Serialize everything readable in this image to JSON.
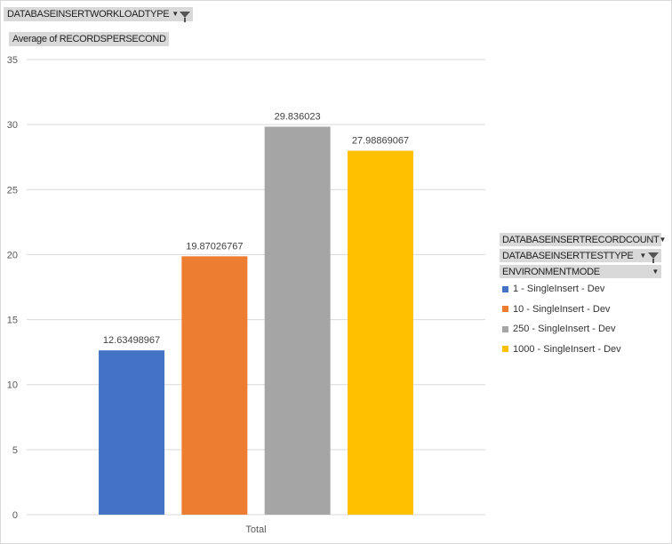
{
  "filters": {
    "report_filter_label": "DATABASEINSERTWORKLOADTYPE",
    "values_label": "Average of RECORDSPERSECOND"
  },
  "legend_fields": [
    {
      "label": "DATABASEINSERTRECORDCOUNT",
      "icon": "dropdown-arrow-icon"
    },
    {
      "label": "DATABASEINSERTTESTTYPE",
      "icon": "filter-dropdown-icon"
    },
    {
      "label": "ENVIRONMENTMODE",
      "icon": "dropdown-arrow-icon"
    }
  ],
  "chart_data": {
    "type": "bar",
    "categories": [
      "Total"
    ],
    "series": [
      {
        "name": "1 - SingleInsert - Dev",
        "values": [
          12.63498967
        ],
        "label": "12.63498967",
        "color": "#4472c4"
      },
      {
        "name": "10 - SingleInsert - Dev",
        "values": [
          19.87026767
        ],
        "label": "19.87026767",
        "color": "#ed7d31"
      },
      {
        "name": "250 - SingleInsert - Dev",
        "values": [
          29.836023
        ],
        "label": "29.836023",
        "color": "#a5a5a5"
      },
      {
        "name": "1000 - SingleInsert - Dev",
        "values": [
          27.98869067
        ],
        "label": "27.98869067",
        "color": "#ffc000"
      }
    ],
    "ylim": [
      0,
      35
    ],
    "yticks": [
      0,
      5,
      10,
      15,
      20,
      25,
      30,
      35
    ],
    "grid": true,
    "legend_position": "right"
  }
}
